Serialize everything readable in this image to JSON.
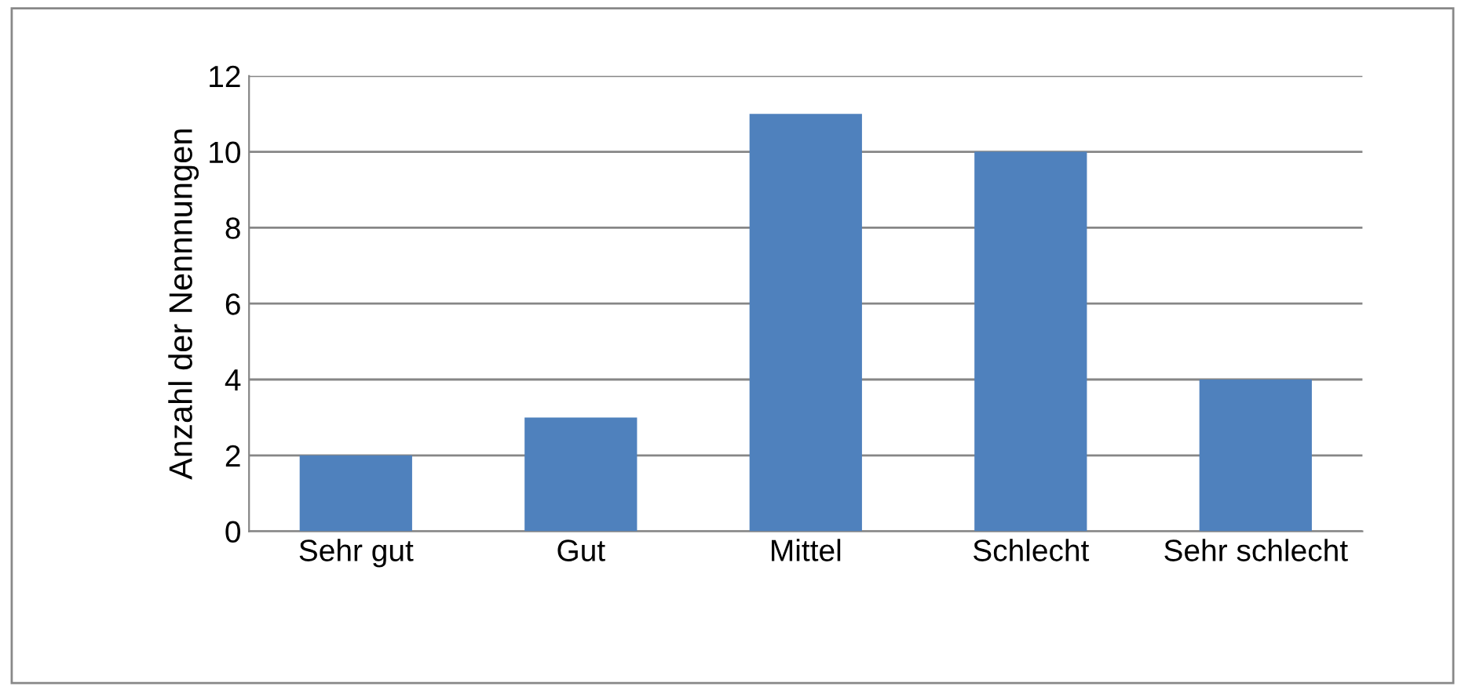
{
  "chart_data": {
    "type": "bar",
    "categories": [
      "Sehr gut",
      "Gut",
      "Mittel",
      "Schlecht",
      "Sehr schlecht"
    ],
    "values": [
      2,
      3,
      11,
      10,
      4
    ],
    "color": "#4f81bd",
    "ylabel": "Anzahl der Nennnungen",
    "ylim": [
      0,
      12
    ],
    "yticks": [
      0,
      2,
      4,
      6,
      8,
      10,
      12
    ],
    "grid": "y"
  }
}
